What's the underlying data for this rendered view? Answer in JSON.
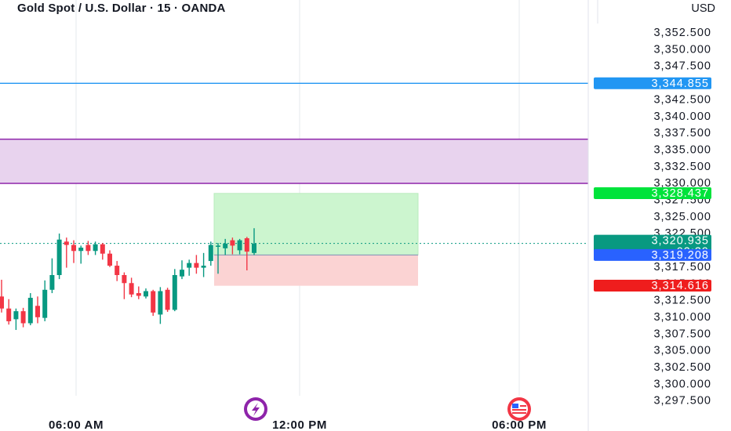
{
  "header": {
    "title": "Gold Spot / U.S. Dollar · 15 · OANDA",
    "currency": "USD"
  },
  "colors": {
    "up": "#089981",
    "down": "#f23645",
    "zone": "#e8d3ee",
    "zone_border": "#8e24aa",
    "resistance": "#2196f3",
    "profit": "#ccf5cf",
    "loss": "#fbd3d3",
    "price_tag": "#089981",
    "blue_tag": "#2962ff",
    "green_tag": "#00e33b",
    "red_tag": "#ef1d1d"
  },
  "axis": {
    "y_ticks": [
      "3,352.500",
      "3,350.000",
      "3,347.500",
      "3,345.000",
      "3,342.500",
      "3,340.000",
      "3,337.500",
      "3,335.000",
      "3,332.500",
      "3,330.000",
      "3,327.500",
      "3,325.000",
      "3,322.500",
      "3,320.000",
      "3,317.500",
      "3,315.000",
      "3,312.500",
      "3,310.000",
      "3,307.500",
      "3,305.000",
      "3,302.500",
      "3,300.000",
      "3,297.500"
    ],
    "x_labels": [
      "06:00 AM",
      "12:00 PM",
      "06:00 PM"
    ]
  },
  "price_tags": {
    "resistance": "3,344.855",
    "take_profit": "3,328.437",
    "last_price": "3,320.935",
    "countdown": "02:39",
    "entry": "3,319.208",
    "stop_loss": "3,314.616"
  },
  "chart_data": {
    "type": "candlestick",
    "title": "Gold Spot / U.S. Dollar · 15 · OANDA",
    "ylim": [
      3296,
      3355
    ],
    "x_ticks": [
      "06:00 AM",
      "12:00 PM",
      "06:00 PM"
    ],
    "candles": [
      {
        "o": 3313.0,
        "h": 3315.5,
        "l": 3310.6,
        "c": 3311.2
      },
      {
        "o": 3311.2,
        "h": 3312.6,
        "l": 3308.8,
        "c": 3309.3
      },
      {
        "o": 3309.6,
        "h": 3311.2,
        "l": 3308.0,
        "c": 3310.8
      },
      {
        "o": 3310.8,
        "h": 3311.3,
        "l": 3308.4,
        "c": 3309.0
      },
      {
        "o": 3309.0,
        "h": 3313.5,
        "l": 3308.7,
        "c": 3312.8
      },
      {
        "o": 3311.6,
        "h": 3313.0,
        "l": 3309.0,
        "c": 3309.9
      },
      {
        "o": 3309.8,
        "h": 3315.4,
        "l": 3309.3,
        "c": 3314.0
      },
      {
        "o": 3314.0,
        "h": 3318.7,
        "l": 3313.5,
        "c": 3316.2
      },
      {
        "o": 3316.2,
        "h": 3322.4,
        "l": 3315.6,
        "c": 3321.5
      },
      {
        "o": 3321.2,
        "h": 3321.8,
        "l": 3317.3,
        "c": 3320.7
      },
      {
        "o": 3320.7,
        "h": 3321.4,
        "l": 3318.0,
        "c": 3319.8
      },
      {
        "o": 3319.8,
        "h": 3320.6,
        "l": 3317.9,
        "c": 3320.3
      },
      {
        "o": 3320.7,
        "h": 3321.3,
        "l": 3319.2,
        "c": 3319.8
      },
      {
        "o": 3319.8,
        "h": 3321.2,
        "l": 3319.2,
        "c": 3320.8
      },
      {
        "o": 3320.8,
        "h": 3321.0,
        "l": 3318.5,
        "c": 3319.4
      },
      {
        "o": 3319.4,
        "h": 3319.9,
        "l": 3317.4,
        "c": 3317.6
      },
      {
        "o": 3317.6,
        "h": 3318.3,
        "l": 3315.3,
        "c": 3316.2
      },
      {
        "o": 3316.2,
        "h": 3316.6,
        "l": 3312.6,
        "c": 3315.0
      },
      {
        "o": 3315.0,
        "h": 3315.8,
        "l": 3312.9,
        "c": 3313.3
      },
      {
        "o": 3313.5,
        "h": 3314.5,
        "l": 3312.6,
        "c": 3313.1
      },
      {
        "o": 3313.0,
        "h": 3314.2,
        "l": 3312.7,
        "c": 3313.8
      },
      {
        "o": 3313.8,
        "h": 3314.0,
        "l": 3310.1,
        "c": 3310.6
      },
      {
        "o": 3310.3,
        "h": 3314.4,
        "l": 3308.9,
        "c": 3313.8
      },
      {
        "o": 3314.0,
        "h": 3314.3,
        "l": 3310.7,
        "c": 3311.0
      },
      {
        "o": 3311.0,
        "h": 3317.1,
        "l": 3310.8,
        "c": 3316.2
      },
      {
        "o": 3316.0,
        "h": 3318.4,
        "l": 3315.6,
        "c": 3317.0
      },
      {
        "o": 3317.3,
        "h": 3318.5,
        "l": 3316.1,
        "c": 3318.0
      },
      {
        "o": 3318.0,
        "h": 3319.2,
        "l": 3316.4,
        "c": 3317.3
      },
      {
        "o": 3317.3,
        "h": 3319.5,
        "l": 3315.9,
        "c": 3317.6
      },
      {
        "o": 3318.3,
        "h": 3321.2,
        "l": 3317.6,
        "c": 3320.7
      },
      {
        "o": 3320.6,
        "h": 3321.0,
        "l": 3316.4,
        "c": 3320.6
      },
      {
        "o": 3320.2,
        "h": 3321.6,
        "l": 3319.2,
        "c": 3320.9
      },
      {
        "o": 3321.4,
        "h": 3321.8,
        "l": 3319.3,
        "c": 3320.6
      },
      {
        "o": 3319.9,
        "h": 3321.6,
        "l": 3319.3,
        "c": 3321.4
      },
      {
        "o": 3321.7,
        "h": 3321.9,
        "l": 3316.9,
        "c": 3319.7
      },
      {
        "o": 3319.5,
        "h": 3323.2,
        "l": 3319.2,
        "c": 3320.9
      }
    ],
    "zones": [
      {
        "name": "supply-zone",
        "from": 3329.9,
        "to": 3336.5
      },
      {
        "name": "take-profit-area",
        "from": 3319.2,
        "to": 3328.4
      },
      {
        "name": "stop-loss-area",
        "from": 3314.6,
        "to": 3319.2
      }
    ],
    "lines": [
      {
        "name": "resistance",
        "value": 3344.855
      },
      {
        "name": "last-price",
        "value": 3320.935
      }
    ],
    "grid": true
  }
}
